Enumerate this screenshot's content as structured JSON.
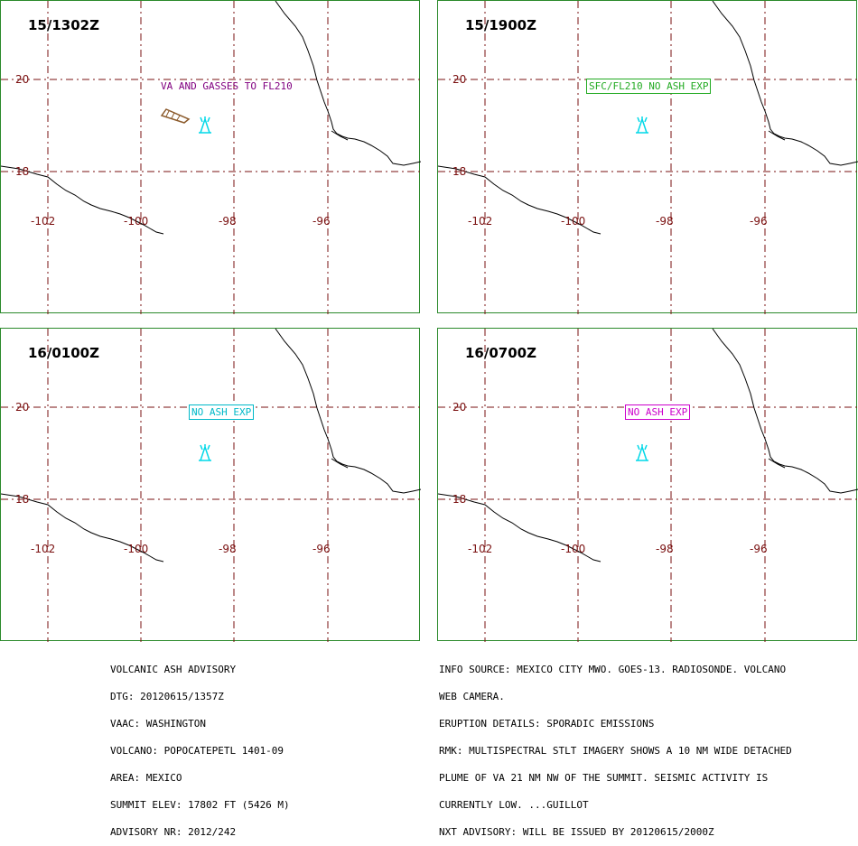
{
  "panels": [
    {
      "time": "15/1302Z",
      "label": "VA AND GASSES TO FL210",
      "label_color": "#800080",
      "boxed": false,
      "has_ash_polygon": true
    },
    {
      "time": "15/1900Z",
      "label": "SFC/FL210 NO ASH EXP",
      "label_color": "#22aa22",
      "boxed": true,
      "has_ash_polygon": false
    },
    {
      "time": "16/0100Z",
      "label": "NO ASH EXP",
      "label_color": "#00b8c8",
      "boxed": true,
      "has_ash_polygon": false
    },
    {
      "time": "16/0700Z",
      "label": "NO ASH EXP",
      "label_color": "#cc00cc",
      "boxed": true,
      "has_ash_polygon": false
    }
  ],
  "axes": {
    "lat_labels": [
      "20",
      "18"
    ],
    "lon_labels": [
      "-102",
      "-100",
      "-98",
      "-96"
    ]
  },
  "colors": {
    "grid": "#7a1010",
    "coastline": "#000000",
    "border": "#2b8a2b",
    "volcano": "#00d8e8",
    "ash_polygon": "#8b5a2b"
  },
  "advisory_left": [
    "VOLCANIC ASH ADVISORY",
    "DTG: 20120615/1357Z",
    "VAAC: WASHINGTON",
    "VOLCANO: POPOCATEPETL 1401-09",
    "AREA: MEXICO",
    "SUMMIT ELEV: 17802 FT (5426 M)",
    "ADVISORY NR: 2012/242"
  ],
  "advisory_right": [
    "INFO SOURCE: MEXICO CITY MWO. GOES-13. RADIOSONDE. VOLCANO",
    "WEB CAMERA.",
    "ERUPTION DETAILS: SPORADIC EMISSIONS",
    "RMK: MULTISPECTRAL STLT IMAGERY SHOWS A 10 NM WIDE DETACHED",
    "PLUME OF VA 21 NM NW OF THE SUMMIT. SEISMIC ACTIVITY IS",
    "CURRENTLY LOW. ...GUILLOT",
    "NXT ADVISORY: WILL BE ISSUED BY 20120615/2000Z"
  ]
}
